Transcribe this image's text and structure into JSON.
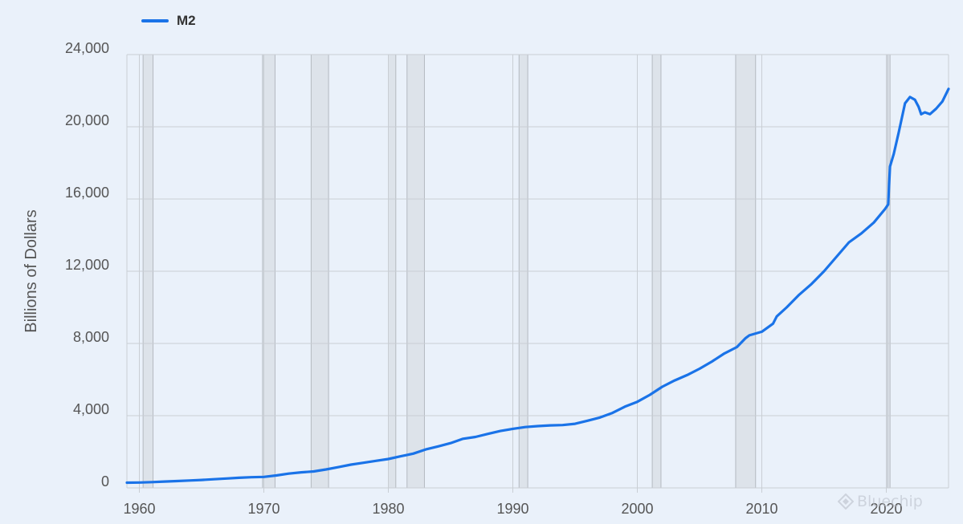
{
  "chart_data": {
    "type": "line",
    "title": "",
    "xlabel": "",
    "ylabel": "Billions of Dollars",
    "xlim": [
      1959.0,
      2025.0
    ],
    "ylim": [
      0,
      24000
    ],
    "xticks": [
      1960,
      1970,
      1980,
      1990,
      2000,
      2010,
      2020
    ],
    "xtick_labels": [
      "1960",
      "1970",
      "1980",
      "1990",
      "2000",
      "2010",
      "2020"
    ],
    "yticks": [
      0,
      4000,
      8000,
      12000,
      16000,
      20000,
      24000
    ],
    "ytick_labels": [
      "0",
      "4,000",
      "8,000",
      "12,000",
      "16,000",
      "20,000",
      "24,000"
    ],
    "grid": true,
    "legend": "top-left",
    "recessions": [
      [
        1960.3,
        1961.1
      ],
      [
        1969.9,
        1970.9
      ],
      [
        1973.8,
        1975.2
      ],
      [
        1980.0,
        1980.6
      ],
      [
        1981.5,
        1982.9
      ],
      [
        1990.5,
        1991.2
      ],
      [
        2001.2,
        2001.9
      ],
      [
        2007.9,
        2009.5
      ],
      [
        2020.1,
        2020.3
      ]
    ],
    "series": [
      {
        "name": "M2",
        "color": "#1a73e8",
        "x": [
          1959.0,
          1960,
          1961,
          1962,
          1963,
          1964,
          1965,
          1966,
          1967,
          1968,
          1969,
          1970,
          1971,
          1972,
          1973,
          1974,
          1975,
          1976,
          1977,
          1978,
          1979,
          1980,
          1981,
          1982,
          1983,
          1984,
          1985,
          1986,
          1987,
          1988,
          1989,
          1990,
          1991,
          1992,
          1993,
          1994,
          1995,
          1996,
          1997,
          1998,
          1999,
          2000,
          2001,
          2002,
          2003,
          2004,
          2005,
          2006,
          2007,
          2008,
          2008.7,
          2009,
          2010,
          2010.9,
          2011.2,
          2012,
          2013,
          2014,
          2015,
          2016,
          2017,
          2018,
          2019,
          2019.9,
          2020.15,
          2020.3,
          2020.6,
          2021,
          2021.5,
          2021.9,
          2022.3,
          2022.6,
          2022.8,
          2023.1,
          2023.5,
          2024,
          2024.5,
          2025.0
        ],
        "values": [
          290,
          300,
          320,
          350,
          380,
          410,
          440,
          480,
          520,
          560,
          590,
          610,
          690,
          790,
          860,
          910,
          1020,
          1150,
          1290,
          1390,
          1500,
          1600,
          1750,
          1900,
          2130,
          2300,
          2480,
          2720,
          2820,
          2990,
          3150,
          3270,
          3370,
          3420,
          3460,
          3480,
          3550,
          3720,
          3900,
          4150,
          4500,
          4770,
          5150,
          5600,
          5950,
          6250,
          6600,
          7000,
          7450,
          7800,
          8300,
          8450,
          8650,
          9100,
          9500,
          10000,
          10700,
          11300,
          12000,
          12800,
          13600,
          14100,
          14700,
          15450,
          15700,
          17800,
          18500,
          19700,
          21300,
          21650,
          21500,
          21100,
          20700,
          20800,
          20700,
          21000,
          21400,
          22100
        ]
      }
    ]
  },
  "watermark": {
    "label": "Bluechip",
    "icon": "diamond-logo-icon"
  }
}
